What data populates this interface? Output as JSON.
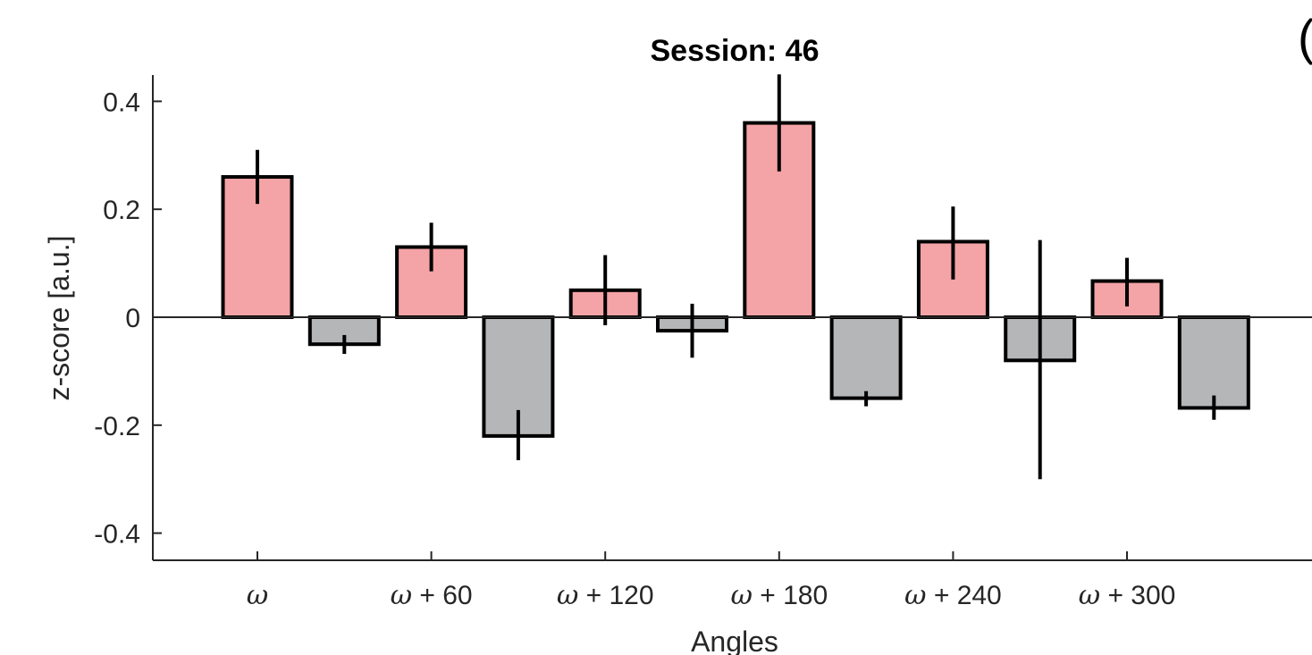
{
  "chart_data": {
    "type": "bar",
    "title": "Session: 46",
    "xlabel": "Angles",
    "ylabel": "z-score [a.u.]",
    "ylim": [
      -0.45,
      0.45
    ],
    "yticks": [
      -0.4,
      -0.2,
      0,
      0.2,
      0.4
    ],
    "ytick_labels": [
      "-0.4",
      "-0.2",
      "0",
      "0.2",
      "0.4"
    ],
    "xtick_labels": [
      {
        "symbol": "ω",
        "suffix": ""
      },
      {
        "symbol": "ω",
        "suffix": " + 60"
      },
      {
        "symbol": "ω",
        "suffix": " + 120"
      },
      {
        "symbol": "ω",
        "suffix": " + 180"
      },
      {
        "symbol": "ω",
        "suffix": " + 240"
      },
      {
        "symbol": "ω",
        "suffix": " + 300"
      }
    ],
    "series": [
      {
        "values": [
          0.26,
          0.13,
          0.05,
          0.36,
          0.14,
          0.067
        ],
        "error_low": [
          0.21,
          0.085,
          -0.015,
          0.27,
          0.07,
          0.02
        ],
        "error_high": [
          0.31,
          0.175,
          0.115,
          0.45,
          0.205,
          0.11
        ],
        "color": "#f4a3a6"
      },
      {
        "values": [
          -0.05,
          -0.22,
          -0.025,
          -0.15,
          -0.08,
          -0.168
        ],
        "error_low": [
          -0.068,
          -0.265,
          -0.075,
          -0.165,
          -0.3,
          -0.19
        ],
        "error_high": [
          -0.033,
          -0.172,
          0.025,
          -0.137,
          0.143,
          -0.145
        ],
        "color": "#b4b6b8"
      }
    ],
    "grid": false,
    "legend": "none",
    "zero_line": true
  },
  "corner_glyph": "("
}
